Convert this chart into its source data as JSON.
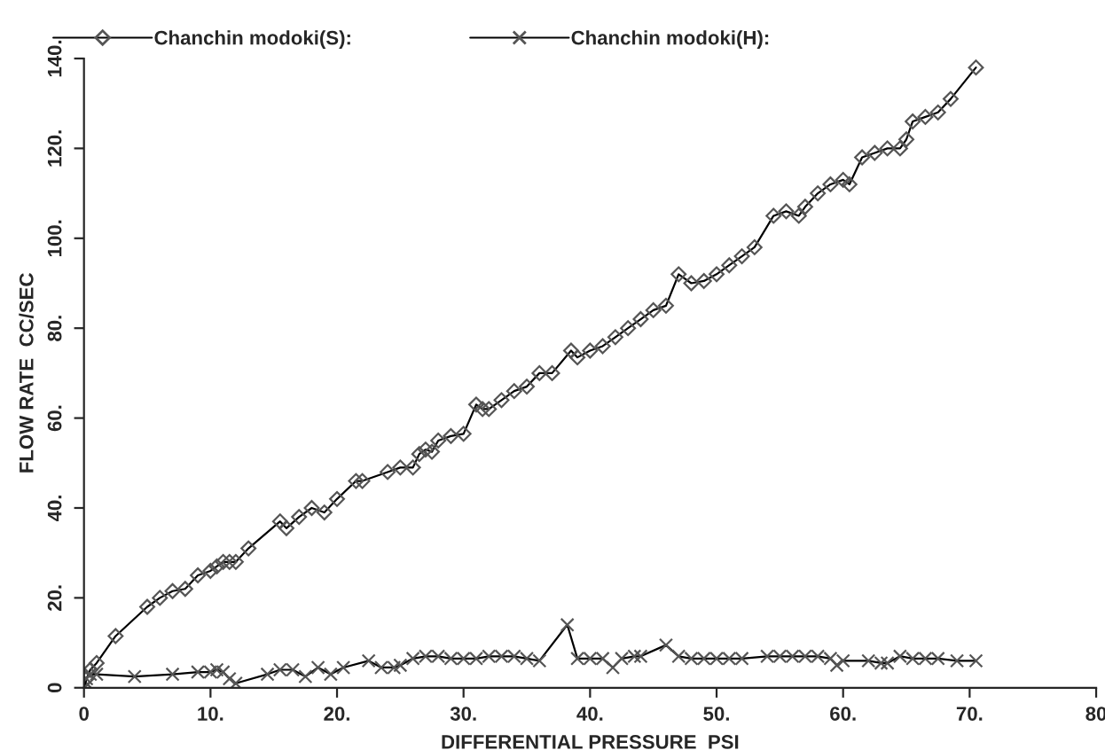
{
  "chart_data": {
    "type": "line",
    "xlabel": "DIFFERENTIAL PRESSURE  PSI",
    "ylabel": "FLOW RATE  CC/SEC",
    "xlim": [
      0,
      80
    ],
    "ylim": [
      0,
      140
    ],
    "xticks": [
      {
        "value": 0,
        "label": "0"
      },
      {
        "value": 10,
        "label": "10."
      },
      {
        "value": 20,
        "label": "20."
      },
      {
        "value": 30,
        "label": "30."
      },
      {
        "value": 40,
        "label": "40."
      },
      {
        "value": 50,
        "label": "50."
      },
      {
        "value": 60,
        "label": "60."
      },
      {
        "value": 70,
        "label": "70."
      },
      {
        "value": 80,
        "label": "80"
      }
    ],
    "yticks": [
      {
        "value": 0,
        "label": "0"
      },
      {
        "value": 20,
        "label": "20."
      },
      {
        "value": 40,
        "label": "40."
      },
      {
        "value": 60,
        "label": "60."
      },
      {
        "value": 80,
        "label": "80."
      },
      {
        "value": 100,
        "label": "100."
      },
      {
        "value": 120,
        "label": "120."
      },
      {
        "value": 140,
        "label": "140."
      }
    ],
    "grid": false,
    "legend": "top left",
    "line_style": "solid",
    "series": [
      {
        "name": "Chanchin modoki(S):",
        "color": "#000000",
        "marker": "diamond",
        "x": [
          0,
          0.2,
          0.5,
          1,
          2.5,
          5,
          6,
          7,
          8,
          9,
          10,
          10.5,
          11,
          11.5,
          12,
          13,
          15.5,
          16,
          17,
          18,
          19,
          20,
          21.5,
          22,
          24,
          25,
          26,
          26.5,
          27,
          27.5,
          28,
          29,
          30,
          31,
          31.5,
          32,
          33,
          34,
          35,
          36,
          37,
          38.5,
          39,
          40,
          41,
          42,
          43,
          44,
          45,
          46,
          47,
          48,
          49,
          50,
          51,
          52,
          53,
          54.5,
          55.5,
          56.5,
          57,
          58,
          59,
          60,
          60.5,
          61.5,
          62.5,
          63.5,
          64.5,
          65,
          65.5,
          66.5,
          67.5,
          68.5,
          70.5
        ],
        "values": [
          0,
          2,
          4,
          5.5,
          11.5,
          18,
          20,
          21.5,
          22,
          25,
          26,
          27,
          28,
          28,
          28,
          31,
          37,
          35.5,
          38,
          40,
          39,
          42,
          46,
          46,
          48,
          49,
          49,
          52,
          53,
          52.5,
          55,
          56,
          56.5,
          63,
          62,
          62,
          64,
          66,
          67,
          70,
          70,
          75,
          73.5,
          75,
          76,
          78,
          80,
          82,
          84,
          85,
          92,
          90,
          90.5,
          92,
          94,
          96,
          98,
          105,
          106,
          105,
          107,
          110,
          112,
          113,
          112,
          118,
          119,
          120,
          120,
          122,
          126,
          127,
          128,
          131,
          138
        ]
      },
      {
        "name": "Chanchin modoki(H):",
        "color": "#000000",
        "marker": "cross",
        "x": [
          0,
          0.2,
          0.5,
          1,
          4,
          7,
          9,
          10,
          10.5,
          11,
          11.5,
          12,
          14.5,
          15.5,
          16.5,
          17.5,
          18.5,
          19.5,
          20.5,
          22.5,
          23.5,
          24.5,
          25,
          26,
          27,
          28,
          29,
          30,
          31,
          32,
          33,
          34,
          35,
          36,
          38.2,
          39,
          40,
          41,
          41.8,
          42.5,
          43.5,
          44,
          46,
          47,
          48,
          49,
          50,
          51,
          52,
          54,
          55,
          56,
          57,
          58,
          59,
          59.5,
          60,
          62,
          63,
          63.5,
          64.5,
          65.5,
          66.5,
          67.5,
          69,
          70.5
        ],
        "values": [
          0,
          2,
          3,
          3,
          2.5,
          3,
          3.5,
          3.5,
          4,
          3.5,
          2,
          1,
          3,
          4,
          4,
          2.5,
          4.5,
          3,
          4.5,
          6,
          4.5,
          4.5,
          5,
          6.5,
          7,
          7,
          6.5,
          6.5,
          6.5,
          7,
          7,
          7,
          6.5,
          6,
          14,
          6.5,
          6.5,
          6.5,
          4.5,
          6.5,
          7,
          7,
          9.5,
          7,
          6.5,
          6.5,
          6.5,
          6.5,
          6.5,
          7,
          7,
          7,
          7,
          7,
          6.5,
          5,
          6,
          6,
          5.5,
          5.5,
          7,
          6.5,
          6.5,
          6.5,
          6,
          6
        ]
      }
    ]
  }
}
